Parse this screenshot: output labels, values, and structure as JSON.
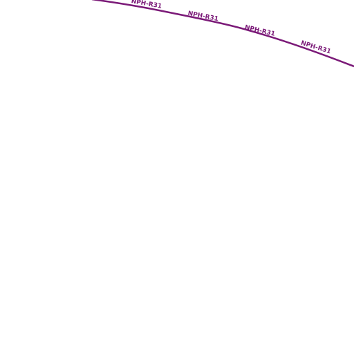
{
  "map": {
    "road": {
      "name": "NPH-R31"
    }
  }
}
